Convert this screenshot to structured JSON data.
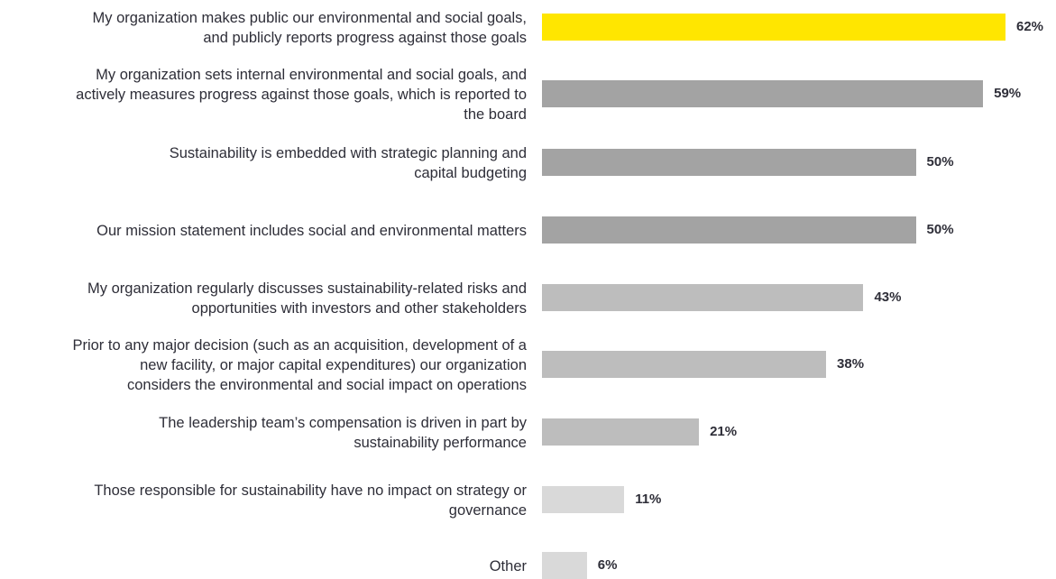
{
  "chart_data": {
    "type": "bar",
    "orientation": "horizontal",
    "categories": [
      "My organization makes public our environmental and social goals,\nand publicly reports progress against those goals",
      "My organization sets internal environmental and social goals, and\nactively measures progress against those goals, which is reported to\nthe board",
      "Sustainability is embedded with strategic planning and\ncapital budgeting",
      "Our mission statement includes social and environmental matters",
      "My organization regularly discusses sustainability-related risks and\nopportunities with investors and other stakeholders",
      "Prior to any major decision (such as an acquisition, development of a\nnew facility, or major capital expenditures) our organization\nconsiders the environmental and social impact on operations",
      "The leadership team’s compensation is driven in part by\nsustainability performance",
      "Those responsible for sustainability have no impact on strategy or\ngovernance",
      "Other"
    ],
    "values": [
      62,
      59,
      50,
      50,
      43,
      38,
      21,
      11,
      6
    ],
    "value_labels": [
      "62%",
      "59%",
      "50%",
      "50%",
      "43%",
      "38%",
      "21%",
      "11%",
      "6%"
    ],
    "bar_colors": [
      "#ffe600",
      "#a3a3a3",
      "#a3a3a3",
      "#a3a3a3",
      "#bdbdbd",
      "#bdbdbd",
      "#bdbdbd",
      "#d9d9d9",
      "#d9d9d9"
    ],
    "xlim": [
      0,
      100
    ],
    "grid": false,
    "title": "",
    "xlabel": "",
    "ylabel": ""
  }
}
